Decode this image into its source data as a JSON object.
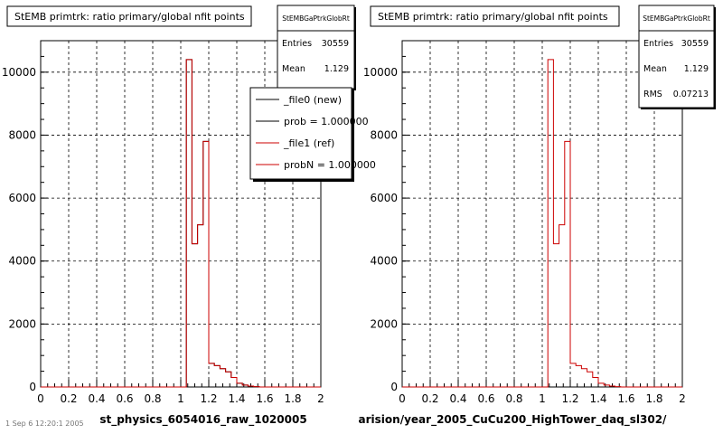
{
  "colors": {
    "new": "#000000",
    "ref": "#cc0000",
    "grid": "#000000",
    "box_shadow": "#000000"
  },
  "footer": {
    "left_text": "1 Sep  6 12:20:1 2005"
  },
  "panels": [
    {
      "title": "StEMB primtrk: ratio primary/global nfit points",
      "stats": {
        "name": "StEMBGaPtrkGlobRt",
        "rows": [
          {
            "label": "Entries",
            "value": "30559"
          },
          {
            "label": "Mean",
            "value": "1.129"
          }
        ]
      },
      "xlabel": "st_physics_6054016_raw_1020005",
      "legend": {
        "entries": [
          {
            "label": "_file0 (new)",
            "series": "new"
          },
          {
            "label": "prob = 1.000000",
            "series": "new"
          },
          {
            "label": "_file1 (ref)",
            "series": "ref"
          },
          {
            "label": "probN = 1.000000",
            "series": "ref"
          }
        ]
      }
    },
    {
      "title": "StEMB primtrk: ratio primary/global nfit points",
      "stats": {
        "name": "StEMBGaPtrkGlobRt",
        "rows": [
          {
            "label": "Entries",
            "value": "30559"
          },
          {
            "label": "Mean",
            "value": "1.129"
          },
          {
            "label": "RMS",
            "value": "0.07213"
          }
        ]
      },
      "xlabel": "arision/year_2005_CuCu200_HighTower_daq_sl302/"
    }
  ],
  "chart_data": [
    {
      "type": "bar",
      "title": "StEMB primtrk: ratio primary/global nfit points",
      "xlabel": "st_physics_6054016_raw_1020005",
      "xlim": [
        0,
        2
      ],
      "ylim": [
        0,
        11000
      ],
      "xticks": [
        "0",
        "0.2",
        "0.4",
        "0.6",
        "0.8",
        "1",
        "1.2",
        "1.4",
        "1.6",
        "1.8",
        "2"
      ],
      "yticks": [
        "0",
        "2000",
        "4000",
        "6000",
        "8000",
        "10000"
      ],
      "grid": true,
      "legend_position": "top-right",
      "bin_edges": [
        0,
        1.04,
        1.08,
        1.12,
        1.16,
        1.2,
        1.24,
        1.28,
        1.32,
        1.36,
        1.4,
        1.44,
        1.48,
        1.52,
        1.56,
        2
      ],
      "series": [
        {
          "name": "_file0 (new)",
          "values": [
            0,
            10400,
            4550,
            5150,
            7800,
            750,
            680,
            580,
            480,
            300,
            120,
            60,
            30,
            10,
            0
          ]
        },
        {
          "name": "_file1 (ref)",
          "values": [
            0,
            10400,
            4550,
            5150,
            7800,
            750,
            680,
            580,
            480,
            300,
            120,
            60,
            30,
            10,
            0
          ]
        }
      ]
    },
    {
      "type": "bar",
      "title": "StEMB primtrk: ratio primary/global nfit points",
      "xlabel": "arision/year_2005_CuCu200_HighTower_daq_sl302/",
      "xlim": [
        0,
        2
      ],
      "ylim": [
        0,
        11000
      ],
      "xticks": [
        "0",
        "0.2",
        "0.4",
        "0.6",
        "0.8",
        "1",
        "1.2",
        "1.4",
        "1.6",
        "1.8",
        "2"
      ],
      "yticks": [
        "0",
        "2000",
        "4000",
        "6000",
        "8000",
        "10000"
      ],
      "grid": true,
      "bin_edges": [
        0,
        1.04,
        1.08,
        1.12,
        1.16,
        1.2,
        1.24,
        1.28,
        1.32,
        1.36,
        1.4,
        1.44,
        1.48,
        1.52,
        1.56,
        2
      ],
      "series": [
        {
          "name": "",
          "values": [
            0,
            10400,
            4550,
            5150,
            7800,
            750,
            680,
            580,
            480,
            300,
            120,
            60,
            30,
            10,
            0
          ]
        }
      ]
    }
  ]
}
